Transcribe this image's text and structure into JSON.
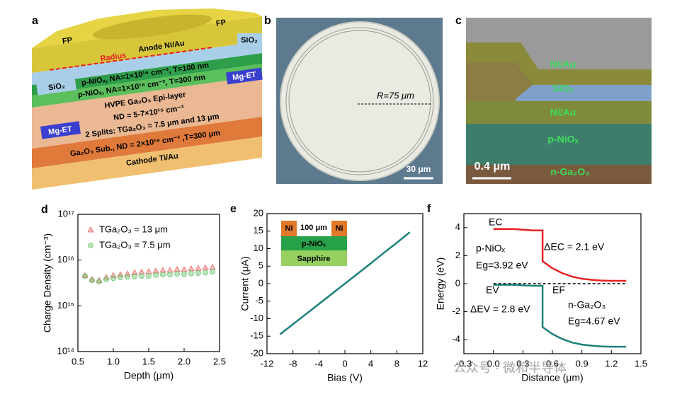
{
  "panels": {
    "a": {
      "label": "a",
      "texts": [
        "FP",
        "FP",
        "SiO₂",
        "Anode Ni/Au",
        "Radius",
        "p-NiOₓ, NA=1×10¹⁹ cm⁻³, T=100 nm",
        "SiO₂",
        "Mg-ET",
        "p-NiOₓ, NA=1×10¹⁸ cm⁻³, T=300 nm",
        "HVPE Ga₂O₃ Epi-layer",
        "ND = 5-7×10¹⁵ cm⁻³",
        "Mg-ET",
        "2 Splits: TGa₂O₃ = 7.5 μm and 13 μm",
        "Ga₂O₃ Sub., ND = 2×10¹⁹ cm⁻³ ,T=300 μm",
        "Cathode Ti/Au"
      ]
    },
    "b": {
      "label": "b",
      "radius": "R=75 μm",
      "scale_bar": "30 μm"
    },
    "c": {
      "label": "c",
      "layers": [
        "Ni/Au",
        "SiO₂",
        "Ni/Au",
        "p-NiOₓ",
        "n-Ga₂O₃"
      ],
      "scale_bar": "0.4 μm"
    }
  },
  "watermark": "公众号 · 微和半导体",
  "chart_data": [
    {
      "type": "scatter",
      "label": "d",
      "xlabel": "Depth (μm)",
      "ylabel": "Charge Density (cm⁻³)",
      "log_y": true,
      "x": [
        0.6,
        0.7,
        0.8,
        0.9,
        1.0,
        1.1,
        1.2,
        1.3,
        1.4,
        1.5,
        1.6,
        1.7,
        1.8,
        1.9,
        2.0,
        2.1,
        2.2,
        2.3,
        2.4
      ],
      "series": [
        {
          "name": "TGa₂O₃ = 13 μm",
          "color": "#e86a6a",
          "marker": "triangle",
          "values": [
            4600000000000000.0,
            3800000000000000.0,
            3600000000000000.0,
            4200000000000000.0,
            4600000000000000.0,
            4800000000000000.0,
            5000000000000000.0,
            5300000000000000.0,
            5500000000000000.0,
            5600000000000000.0,
            5800000000000000.0,
            6000000000000000.0,
            6000000000000000.0,
            6300000000000000.0,
            6200000000000000.0,
            6500000000000000.0,
            6600000000000000.0,
            6800000000000000.0,
            7000000000000000.0
          ]
        },
        {
          "name": "TGa₂O₃ = 7.5 μm",
          "color": "#6cc06c",
          "marker": "circle",
          "values": [
            4500000000000000.0,
            3600000000000000.0,
            3400000000000000.0,
            3800000000000000.0,
            4000000000000000.0,
            4200000000000000.0,
            4300000000000000.0,
            4400000000000000.0,
            4500000000000000.0,
            4500000000000000.0,
            4700000000000000.0,
            4800000000000000.0,
            4800000000000000.0,
            5000000000000000.0,
            4900000000000000.0,
            5100000000000000.0,
            5200000000000000.0,
            5300000000000000.0,
            5600000000000000.0
          ]
        }
      ],
      "xlim": [
        0.5,
        2.5
      ],
      "xticks": [
        0.5,
        {
          "value": 1,
          "label": "1.0"
        },
        1.5,
        {
          "value": 2,
          "label": "2.0"
        },
        2.5
      ],
      "ylim": [
        100000000000000.0,
        1e+17
      ],
      "yticks": [
        {
          "value": 100000000000000.0,
          "label": "10¹⁴"
        },
        {
          "value": 1000000000000000.0,
          "label": "10¹⁵"
        },
        {
          "value": 1e+16,
          "label": "10¹⁶"
        },
        {
          "value": 1e+17,
          "label": "10¹⁷"
        }
      ],
      "legend": "upper left"
    },
    {
      "type": "line",
      "label": "e",
      "xlabel": "Bias (V)",
      "ylabel": "Current (μA)",
      "x": [
        -10,
        -8,
        -6,
        -4,
        -2,
        0,
        2,
        4,
        6,
        8,
        10
      ],
      "series": [
        {
          "color": "#1b8079",
          "values": [
            -14.5,
            -11.6,
            -8.7,
            -5.8,
            -2.9,
            0,
            2.9,
            5.8,
            8.8,
            11.7,
            14.7
          ]
        }
      ],
      "xlim": [
        -12,
        12
      ],
      "xticks": [
        -12,
        -8,
        -4,
        0,
        4,
        8,
        12
      ],
      "ylim": [
        -20,
        20
      ],
      "yticks": [
        -20,
        -15,
        -10,
        -5,
        0,
        5,
        10,
        15,
        20
      ],
      "inset": {
        "texts": [
          "Ni",
          "100 μm",
          "Ni",
          "p-NiOₓ",
          "Sapphire"
        ]
      }
    },
    {
      "type": "line",
      "label": "f",
      "xlabel": "Distance (μm)",
      "ylabel": "Energy (eV)",
      "x": [
        0,
        0.1,
        0.2,
        0.3,
        0.4,
        0.5,
        0.5,
        0.6,
        0.7,
        0.8,
        0.9,
        1.0,
        1.1,
        1.2,
        1.3,
        1.35
      ],
      "series": [
        {
          "color": "#e8211f",
          "values": [
            3.9,
            3.9,
            3.9,
            3.85,
            3.8,
            3.8,
            1.6,
            1.1,
            0.75,
            0.5,
            0.35,
            0.27,
            0.22,
            0.2,
            0.2,
            0.2
          ]
        },
        {
          "color": "#1b8079",
          "values": [
            -0.08,
            -0.08,
            -0.08,
            -0.12,
            -0.15,
            -0.15,
            -3.1,
            -3.6,
            -3.95,
            -4.2,
            -4.35,
            -4.43,
            -4.48,
            -4.5,
            -4.5,
            -4.5
          ]
        }
      ],
      "fermi_level": {
        "x": [
          0,
          1.35
        ],
        "values": [
          0,
          0
        ]
      },
      "xlim": [
        -0.3,
        1.5
      ],
      "xticks": [
        -0.3,
        {
          "value": 0,
          "label": "0.0"
        },
        0.3,
        0.6,
        0.9,
        1.2,
        1.5
      ],
      "ylim": [
        -5,
        5
      ],
      "yticks": [
        -4,
        -2,
        0,
        2,
        4
      ],
      "annotations": [
        "EC",
        "ΔEC = 2.1 eV",
        "p-NiOₓ",
        "Eg=3.92 eV",
        "EV",
        "EF",
        "ΔEV = 2.8 eV",
        "n-Ga₂O₃",
        "Eg=4.67 eV"
      ]
    }
  ]
}
